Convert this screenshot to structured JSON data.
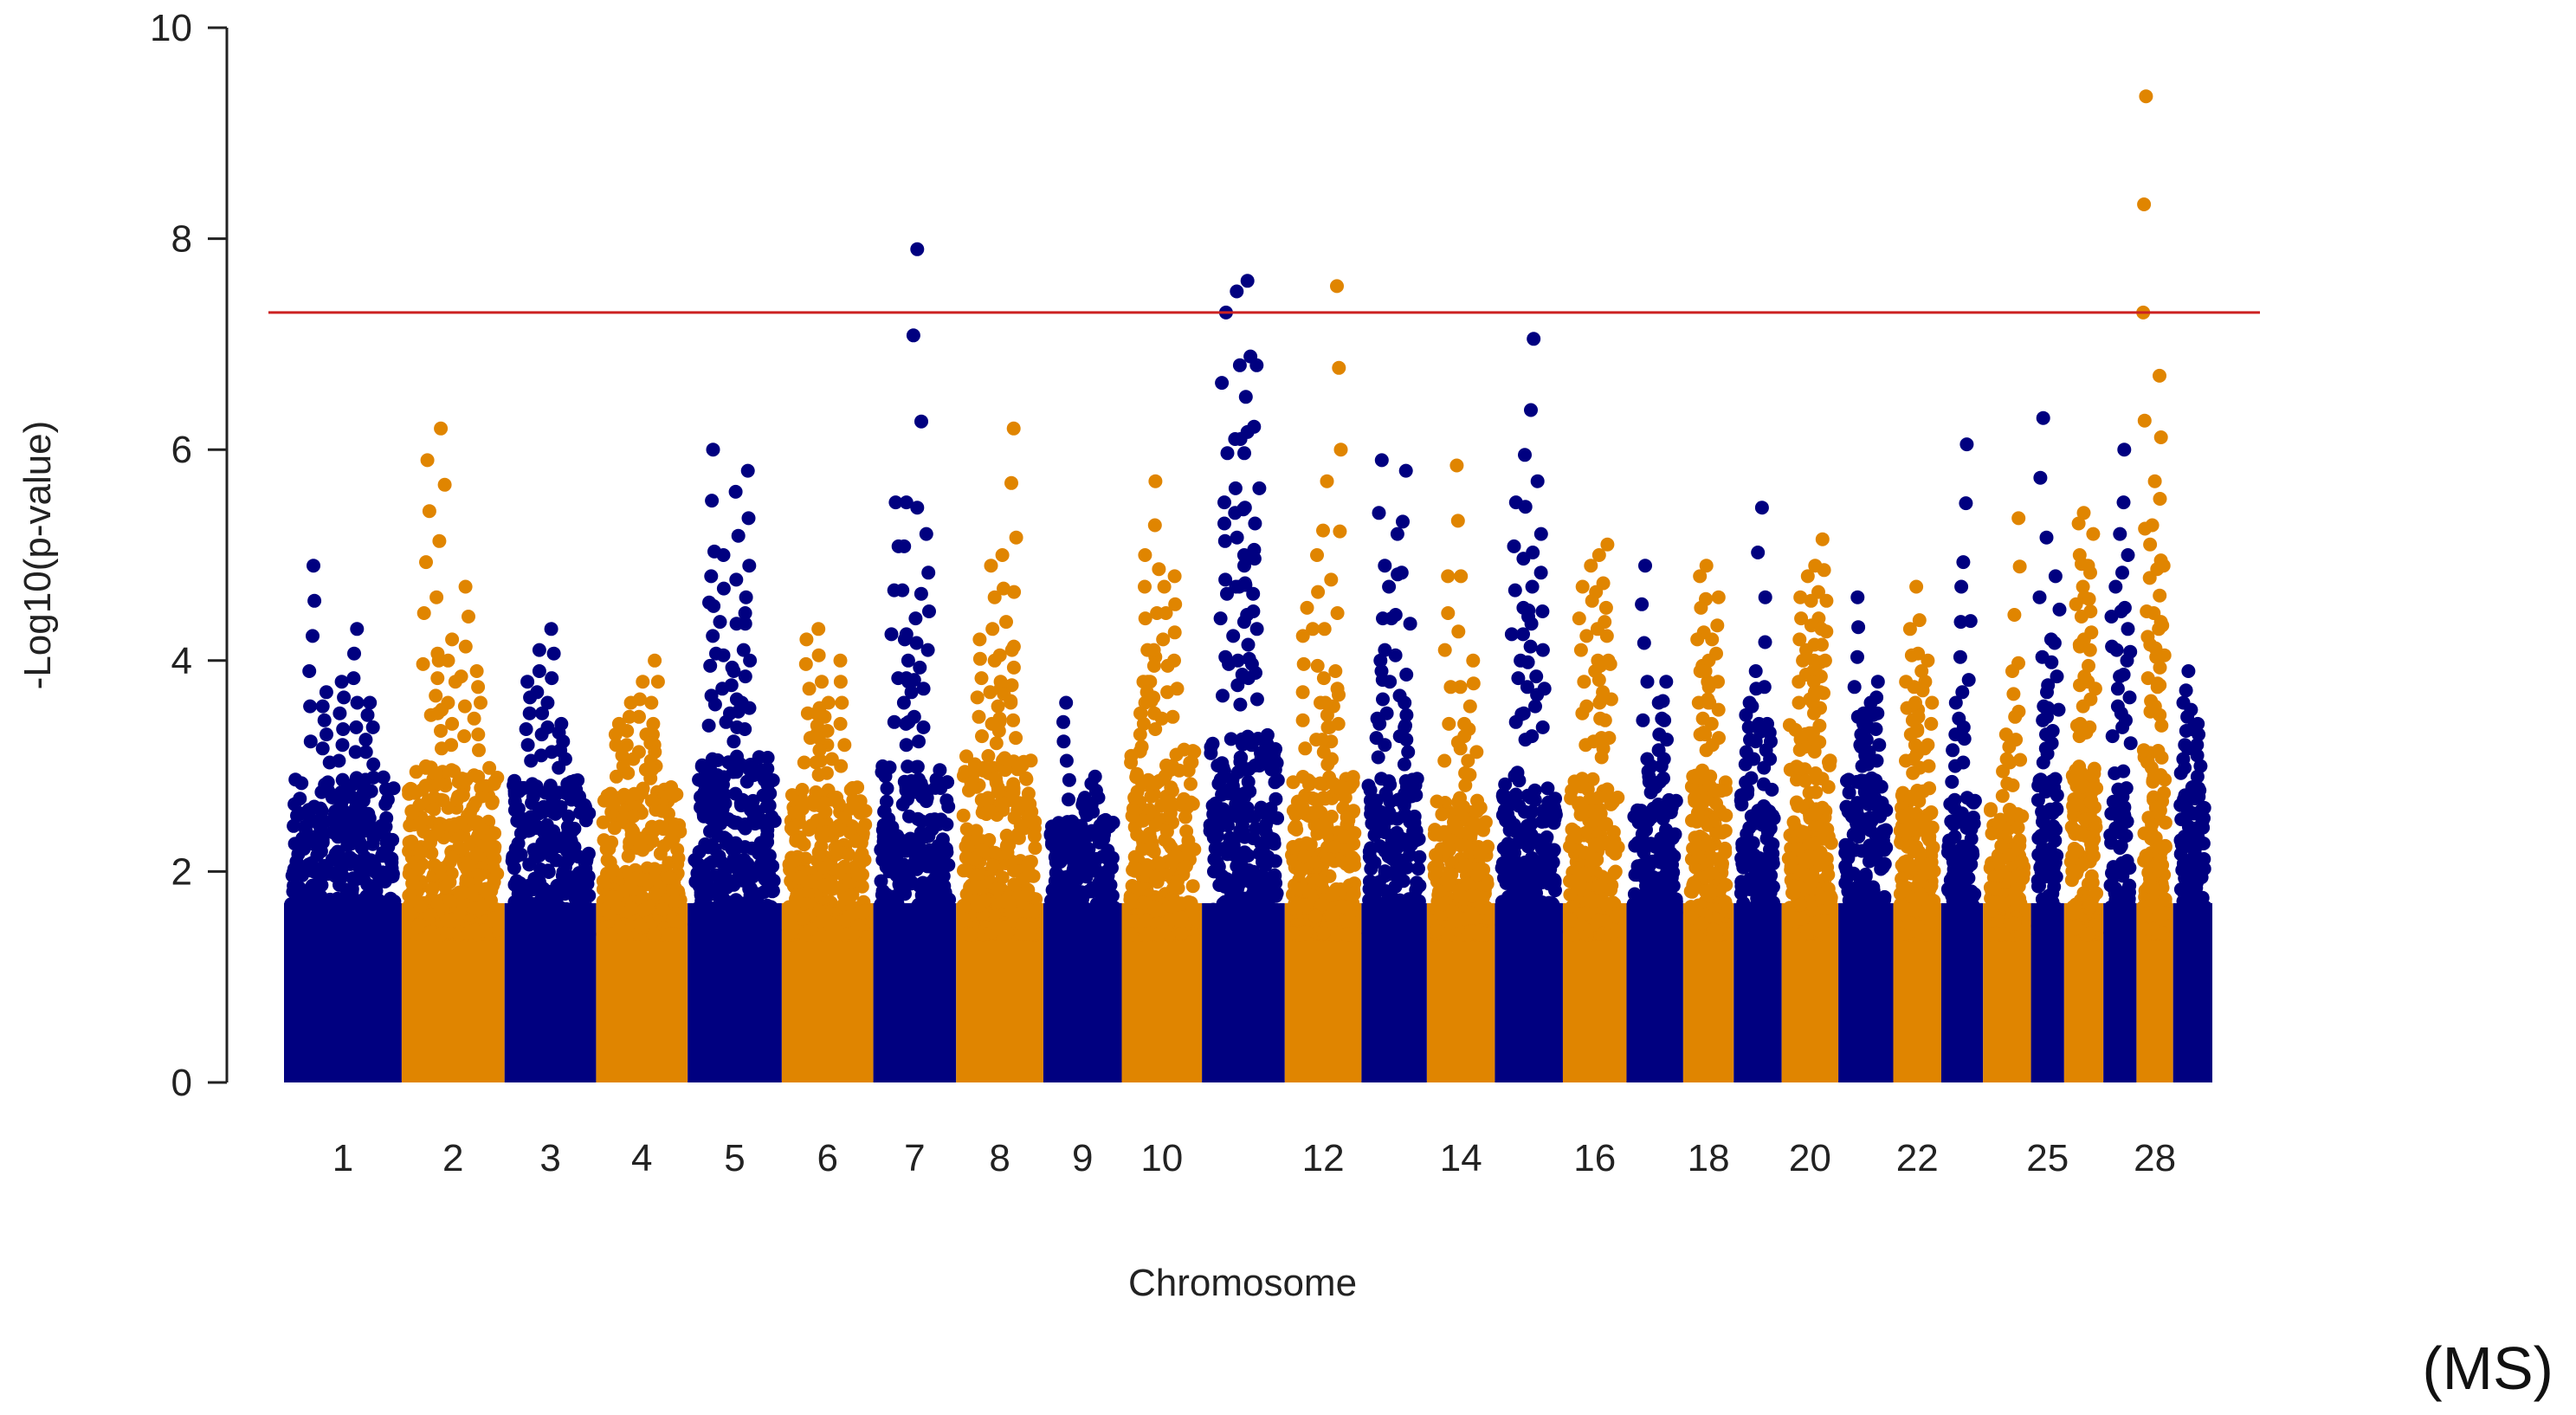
{
  "chart_data": {
    "type": "scatter",
    "ylabel": "-Log10(p-value)",
    "xlabel": "Chromosome",
    "ylim": [
      0,
      10
    ],
    "yticks": [
      0,
      2,
      4,
      6,
      8,
      10
    ],
    "threshold": 7.3,
    "threshold_color": "#cc2222",
    "colors": [
      "#000080",
      "#E08500"
    ],
    "panel_label": "(MS)",
    "x_tick_labels": [
      "1",
      "2",
      "3",
      "4",
      "5",
      "6",
      "7",
      "8",
      "9",
      "10",
      "12",
      "14",
      "16",
      "18",
      "20",
      "22",
      "25",
      "28"
    ],
    "x_tick_chromosomes": [
      1,
      2,
      3,
      4,
      5,
      6,
      7,
      8,
      9,
      10,
      12,
      14,
      16,
      18,
      20,
      22,
      25,
      28
    ],
    "chromosomes": [
      {
        "chr": 1,
        "base": 2.9,
        "peaks": [
          4.9,
          4.3,
          3.8,
          3.7,
          3.6
        ]
      },
      {
        "chr": 2,
        "base": 3.0,
        "peaks": [
          6.2,
          5.9,
          4.7,
          4.2,
          4.0,
          3.9
        ]
      },
      {
        "chr": 3,
        "base": 2.9,
        "peaks": [
          4.3,
          4.1,
          3.8,
          3.4
        ]
      },
      {
        "chr": 4,
        "base": 2.8,
        "peaks": [
          4.0,
          3.8,
          3.6,
          3.4,
          3.3
        ]
      },
      {
        "chr": 5,
        "base": 3.1,
        "peaks": [
          6.0,
          5.8,
          5.6,
          5.0,
          4.8,
          4.6,
          3.9
        ]
      },
      {
        "chr": 6,
        "base": 2.8,
        "peaks": [
          4.3,
          4.2,
          4.0,
          3.6,
          3.5
        ]
      },
      {
        "chr": 7,
        "base": 3.0,
        "peaks": [
          7.9,
          5.5,
          5.5,
          5.2,
          4.4,
          4.2
        ]
      },
      {
        "chr": 8,
        "base": 3.1,
        "peaks": [
          6.2,
          5.0,
          4.9,
          4.2,
          4.1,
          3.8
        ]
      },
      {
        "chr": 9,
        "base": 2.5,
        "peaks": [
          3.6,
          2.9,
          2.7
        ]
      },
      {
        "chr": 10,
        "base": 3.2,
        "peaks": [
          5.7,
          5.0,
          4.8,
          4.7,
          4.1,
          3.8
        ]
      },
      {
        "chr": 11,
        "base": 3.3,
        "peaks": [
          7.6,
          7.5,
          7.3,
          6.8,
          6.5,
          6.1,
          5.5,
          5.3,
          5.0
        ]
      },
      {
        "chr": 12,
        "base": 2.9,
        "peaks": [
          7.55,
          5.7,
          5.0,
          4.5,
          3.9,
          3.6
        ]
      },
      {
        "chr": 13,
        "base": 2.9,
        "peaks": [
          5.9,
          5.8,
          5.2,
          4.7,
          4.0,
          3.6
        ]
      },
      {
        "chr": 14,
        "base": 2.7,
        "peaks": [
          5.85,
          4.8,
          4.0,
          3.4
        ]
      },
      {
        "chr": 15,
        "base": 3.0,
        "peaks": [
          7.05,
          5.95,
          5.5,
          5.2,
          4.7,
          4.5
        ]
      },
      {
        "chr": 16,
        "base": 2.9,
        "peaks": [
          5.1,
          5.0,
          4.9,
          4.7,
          4.5,
          4.0
        ]
      },
      {
        "chr": 17,
        "base": 2.7,
        "peaks": [
          4.9,
          3.8,
          3.6,
          3.0
        ]
      },
      {
        "chr": 18,
        "base": 3.0,
        "peaks": [
          4.9,
          4.8,
          4.6,
          4.2,
          3.9
        ]
      },
      {
        "chr": 19,
        "base": 2.9,
        "peaks": [
          5.45,
          3.9,
          3.6,
          3.4
        ]
      },
      {
        "chr": 20,
        "base": 3.4,
        "peaks": [
          5.15,
          4.9,
          4.8,
          4.6,
          4.3,
          4.0
        ]
      },
      {
        "chr": 21,
        "base": 2.9,
        "peaks": [
          4.6,
          3.8,
          3.6,
          3.5
        ]
      },
      {
        "chr": 22,
        "base": 2.8,
        "peaks": [
          4.7,
          4.3,
          4.0,
          3.9,
          3.6
        ]
      },
      {
        "chr": 23,
        "base": 2.7,
        "peaks": [
          6.05,
          4.7,
          3.6
        ]
      },
      {
        "chr": 24,
        "base": 2.6,
        "peaks": [
          5.35,
          3.9,
          3.3
        ]
      },
      {
        "chr": 25,
        "base": 2.9,
        "peaks": [
          6.3,
          4.8,
          4.2,
          3.7
        ]
      },
      {
        "chr": 26,
        "base": 3.0,
        "peaks": [
          5.4,
          5.3,
          5.2,
          4.9,
          4.7
        ]
      },
      {
        "chr": 27,
        "base": 3.0,
        "peaks": [
          6.0,
          5.2,
          4.7,
          4.3
        ]
      },
      {
        "chr": 28,
        "base": 3.2,
        "peaks": [
          9.35,
          6.7,
          5.7,
          5.1,
          4.9,
          4.3
        ]
      },
      {
        "chr": 29,
        "base": 2.8,
        "peaks": [
          3.9,
          3.6,
          3.4
        ]
      }
    ]
  }
}
